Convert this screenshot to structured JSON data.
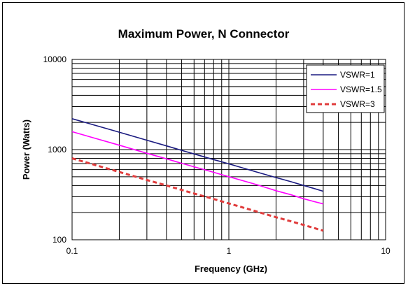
{
  "chart_data": {
    "type": "line",
    "title": "Maximum Power, N Connector",
    "xlabel": "Frequency (GHz)",
    "ylabel": "Power (Watts)",
    "x_scale": "log",
    "y_scale": "log",
    "xlim": [
      0.1,
      10
    ],
    "ylim": [
      100,
      10000
    ],
    "x_ticks": [
      "0.1",
      "1",
      "10"
    ],
    "y_ticks": [
      "100",
      "1000",
      "10000"
    ],
    "grid": true,
    "legend_position": "top-right",
    "series": [
      {
        "name": "VSWR=1",
        "color": "#1a1a80",
        "style": "solid",
        "x": [
          0.1,
          0.2,
          0.3,
          0.4,
          0.5,
          0.6,
          0.8,
          1,
          1.5,
          2,
          2.5,
          3,
          3.5,
          4
        ],
        "y": [
          2200,
          1560,
          1270,
          1100,
          980,
          895,
          775,
          695,
          565,
          490,
          440,
          400,
          370,
          345
        ]
      },
      {
        "name": "VSWR=1.5",
        "color": "#ff00ff",
        "style": "solid",
        "x": [
          0.1,
          0.2,
          0.3,
          0.4,
          0.5,
          0.6,
          0.8,
          1,
          1.5,
          2,
          2.5,
          3,
          3.5,
          4
        ],
        "y": [
          1580,
          1120,
          910,
          790,
          705,
          645,
          560,
          500,
          410,
          350,
          315,
          285,
          265,
          250
        ]
      },
      {
        "name": "VSWR=3",
        "color": "#e03c3c",
        "style": "dashed",
        "x": [
          0.1,
          0.2,
          0.3,
          0.4,
          0.5,
          0.6,
          0.8,
          1,
          1.5,
          2,
          2.5,
          3,
          3.5,
          4
        ],
        "y": [
          800,
          565,
          460,
          400,
          357,
          326,
          283,
          253,
          206,
          178,
          160,
          146,
          135,
          126
        ]
      }
    ]
  }
}
